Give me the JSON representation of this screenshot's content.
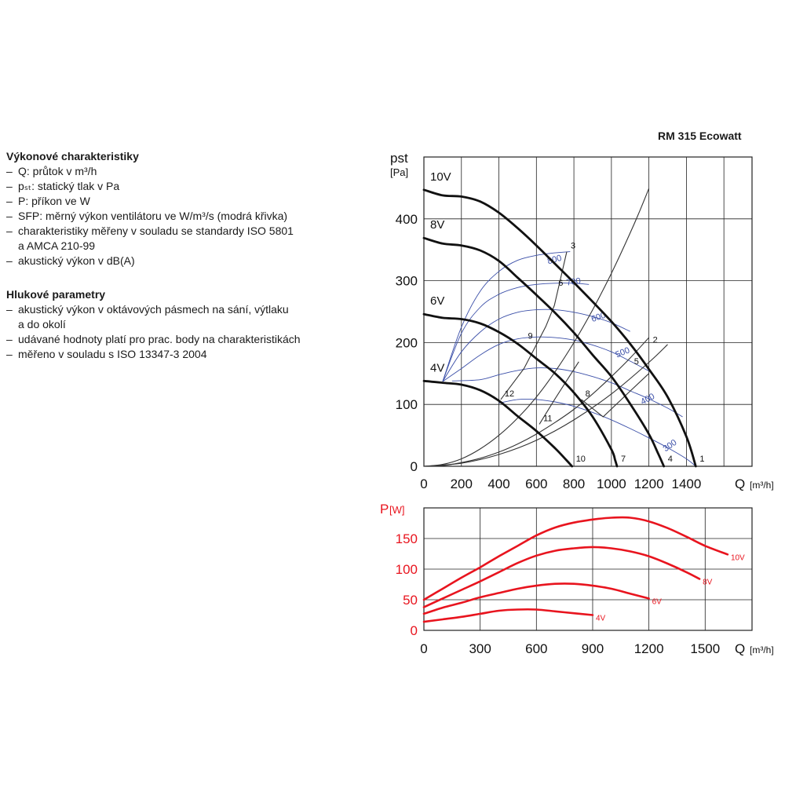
{
  "product_title": "RM 315 Ecowatt",
  "performance": {
    "title": "Výkonové charakteristiky",
    "items": [
      "Q: průtok v m³/h",
      "pₛₜ: statický tlak v Pa",
      "P: příkon ve W",
      "SFP: měrný výkon ventilátoru ve W/m³/s (modrá křivka)",
      "charakteristiky měřeny v souladu se standardy ISO 5801\na AMCA 210-99",
      "akustický výkon v dB(A)"
    ]
  },
  "noise": {
    "title": "Hlukové parametry",
    "items": [
      "akustický výkon v oktávových pásmech na sání, výtlaku\na do okolí",
      "udávané hodnoty platí pro prac. body na charakteristikách",
      "měřeno v souladu s ISO 13347-3 2004"
    ]
  },
  "colors": {
    "fan_curve": "#111111",
    "sfp_curve": "#3b4fa8",
    "power_curve": "#e8141e",
    "grid": "#222222"
  },
  "chart_data": [
    {
      "type": "line",
      "ylabel_main": "pst",
      "ylabel_unit": "[Pa]",
      "xlabel": "Q",
      "xlabel_unit": "[m³/h]",
      "xlim": [
        0,
        1750
      ],
      "ylim": [
        0,
        500
      ],
      "xticks": [
        0,
        200,
        400,
        600,
        800,
        1000,
        1200,
        1400
      ],
      "yticks": [
        0,
        100,
        200,
        300,
        400
      ],
      "grid": true,
      "series": [
        {
          "name": "10V",
          "points": [
            [
              0,
              447
            ],
            [
              100,
              438
            ],
            [
              200,
              436
            ],
            [
              300,
              428
            ],
            [
              400,
              410
            ],
            [
              500,
              385
            ],
            [
              600,
              357
            ],
            [
              700,
              327
            ],
            [
              800,
              297
            ],
            [
              900,
              266
            ],
            [
              1000,
              234
            ],
            [
              1100,
              198
            ],
            [
              1200,
              157
            ],
            [
              1300,
              112
            ],
            [
              1400,
              48
            ],
            [
              1450,
              0
            ]
          ]
        },
        {
          "name": "8V",
          "points": [
            [
              0,
              369
            ],
            [
              100,
              360
            ],
            [
              200,
              357
            ],
            [
              300,
              349
            ],
            [
              400,
              332
            ],
            [
              500,
              305
            ],
            [
              600,
              277
            ],
            [
              700,
              248
            ],
            [
              800,
              216
            ],
            [
              900,
              180
            ],
            [
              1000,
              145
            ],
            [
              1100,
              101
            ],
            [
              1200,
              52
            ],
            [
              1250,
              20
            ],
            [
              1280,
              0
            ]
          ]
        },
        {
          "name": "6V",
          "points": [
            [
              0,
              246
            ],
            [
              100,
              240
            ],
            [
              200,
              238
            ],
            [
              300,
              231
            ],
            [
              400,
              217
            ],
            [
              500,
              198
            ],
            [
              600,
              174
            ],
            [
              700,
              150
            ],
            [
              800,
              119
            ],
            [
              900,
              80
            ],
            [
              1000,
              27
            ],
            [
              1020,
              10
            ],
            [
              1030,
              0
            ]
          ]
        },
        {
          "name": "4V",
          "points": [
            [
              0,
              138
            ],
            [
              100,
              135
            ],
            [
              200,
              132
            ],
            [
              300,
              123
            ],
            [
              400,
              106
            ],
            [
              500,
              81
            ],
            [
              600,
              57
            ],
            [
              700,
              29
            ],
            [
              760,
              10
            ],
            [
              790,
              0
            ]
          ]
        }
      ],
      "sfp_curves": [
        {
          "label": "800",
          "points": [
            [
              100,
              137
            ],
            [
              200,
              225
            ],
            [
              300,
              283
            ],
            [
              400,
              315
            ],
            [
              500,
              333
            ],
            [
              600,
              341
            ],
            [
              700,
              345
            ],
            [
              780,
              347
            ]
          ]
        },
        {
          "label": "700",
          "points": [
            [
              100,
              137
            ],
            [
              200,
              215
            ],
            [
              300,
              257
            ],
            [
              400,
              278
            ],
            [
              500,
              289
            ],
            [
              600,
              294
            ],
            [
              700,
              296
            ],
            [
              800,
              296
            ],
            [
              880,
              294
            ]
          ]
        },
        {
          "label": "600",
          "points": [
            [
              100,
              137
            ],
            [
              200,
              185
            ],
            [
              300,
              217
            ],
            [
              400,
              238
            ],
            [
              500,
              249
            ],
            [
              600,
              253
            ],
            [
              700,
              253
            ],
            [
              800,
              249
            ],
            [
              900,
              242
            ],
            [
              1000,
              232
            ],
            [
              1100,
              218
            ]
          ]
        },
        {
          "label": "500",
          "points": [
            [
              100,
              137
            ],
            [
              200,
              158
            ],
            [
              300,
              180
            ],
            [
              400,
              197
            ],
            [
              500,
              206
            ],
            [
              600,
              209
            ],
            [
              700,
              208
            ],
            [
              800,
              204
            ],
            [
              900,
              196
            ],
            [
              1000,
              185
            ],
            [
              1100,
              170
            ],
            [
              1200,
              154
            ]
          ]
        },
        {
          "label": "400",
          "points": [
            [
              150,
              138
            ],
            [
              300,
              140
            ],
            [
              400,
              148
            ],
            [
              500,
              155
            ],
            [
              600,
              159
            ],
            [
              700,
              158
            ],
            [
              800,
              153
            ],
            [
              900,
              145
            ],
            [
              1000,
              135
            ],
            [
              1100,
              122
            ],
            [
              1200,
              109
            ],
            [
              1300,
              94
            ],
            [
              1380,
              80
            ]
          ]
        },
        {
          "label": "300",
          "points": [
            [
              400,
              102
            ],
            [
              500,
              108
            ],
            [
              600,
              108
            ],
            [
              700,
              104
            ],
            [
              800,
              97
            ],
            [
              900,
              87
            ],
            [
              1000,
              75
            ],
            [
              1100,
              61
            ],
            [
              1200,
              46
            ],
            [
              1300,
              30
            ],
            [
              1400,
              12
            ],
            [
              1450,
              0
            ]
          ]
        }
      ],
      "system_curves": [
        {
          "points": [
            [
              0,
              0
            ],
            [
              100,
              3
            ],
            [
              200,
              12
            ],
            [
              300,
              28
            ],
            [
              400,
              50
            ],
            [
              500,
              78
            ],
            [
              600,
              112
            ],
            [
              700,
              153
            ],
            [
              800,
              200
            ],
            [
              900,
              253
            ],
            [
              1000,
              312
            ],
            [
              1100,
              377
            ],
            [
              1150,
              412
            ],
            [
              1200,
              449
            ]
          ]
        },
        {
          "points": [
            [
              0,
              0
            ],
            [
              100,
              1
            ],
            [
              200,
              6
            ],
            [
              300,
              13
            ],
            [
              400,
              23
            ],
            [
              500,
              36
            ],
            [
              600,
              52
            ],
            [
              700,
              71
            ],
            [
              800,
              92
            ],
            [
              900,
              117
            ],
            [
              1000,
              145
            ],
            [
              1100,
              175
            ],
            [
              1200,
              208
            ]
          ]
        },
        {
          "points": [
            [
              0,
              0
            ],
            [
              200,
              5
            ],
            [
              400,
              19
            ],
            [
              600,
              42
            ],
            [
              800,
              75
            ],
            [
              1000,
              117
            ],
            [
              1200,
              168
            ],
            [
              1300,
              197
            ]
          ]
        }
      ],
      "operating_point_lines": [
        [
          [
            410,
            108
          ],
          [
            534,
            158
          ],
          [
            650,
            226
          ],
          [
            696,
            260
          ],
          [
            762,
            347
          ]
        ],
        [
          [
            616,
            68
          ],
          [
            697,
            108
          ],
          [
            826,
            169
          ]
        ],
        [
          [
            1200,
            150
          ],
          [
            1095,
            120
          ],
          [
            956,
            80
          ],
          [
            840,
            108
          ]
        ]
      ],
      "operating_points": [
        {
          "label": "1",
          "x": 1450,
          "y": 0
        },
        {
          "label": "2",
          "x": 1200,
          "y": 195
        },
        {
          "label": "3",
          "x": 762,
          "y": 347
        },
        {
          "label": "4",
          "x": 1280,
          "y": 0
        },
        {
          "label": "5",
          "x": 1100,
          "y": 160
        },
        {
          "label": "6",
          "x": 696,
          "y": 287
        },
        {
          "label": "7",
          "x": 1030,
          "y": 0
        },
        {
          "label": "8",
          "x": 840,
          "y": 108
        },
        {
          "label": "9",
          "x": 534,
          "y": 201
        },
        {
          "label": "10",
          "x": 790,
          "y": 0
        },
        {
          "label": "11",
          "x": 616,
          "y": 68
        },
        {
          "label": "12",
          "x": 410,
          "y": 108
        }
      ]
    },
    {
      "type": "line",
      "ylabel_main": "P",
      "ylabel_unit": "[W]",
      "xlabel": "Q",
      "xlabel_unit": "[m³/h]",
      "xlim": [
        0,
        1750
      ],
      "ylim": [
        0,
        200
      ],
      "xticks": [
        0,
        300,
        600,
        900,
        1200,
        1500
      ],
      "yticks": [
        0,
        50,
        100,
        150
      ],
      "grid": true,
      "series": [
        {
          "name": "10V",
          "points": [
            [
              0,
              50
            ],
            [
              100,
              68
            ],
            [
              200,
              86
            ],
            [
              300,
              103
            ],
            [
              400,
              121
            ],
            [
              500,
              138
            ],
            [
              600,
              155
            ],
            [
              700,
              168
            ],
            [
              800,
              176
            ],
            [
              900,
              181
            ],
            [
              1000,
              184
            ],
            [
              1100,
              184
            ],
            [
              1200,
              178
            ],
            [
              1300,
              167
            ],
            [
              1400,
              153
            ],
            [
              1500,
              138
            ],
            [
              1620,
              124
            ]
          ]
        },
        {
          "name": "8V",
          "points": [
            [
              0,
              38
            ],
            [
              100,
              52
            ],
            [
              200,
              66
            ],
            [
              300,
              80
            ],
            [
              400,
              95
            ],
            [
              500,
              110
            ],
            [
              600,
              122
            ],
            [
              700,
              130
            ],
            [
              800,
              134
            ],
            [
              900,
              136
            ],
            [
              1000,
              134
            ],
            [
              1100,
              129
            ],
            [
              1200,
              121
            ],
            [
              1300,
              109
            ],
            [
              1400,
              95
            ],
            [
              1470,
              84
            ]
          ]
        },
        {
          "name": "6V",
          "points": [
            [
              0,
              27
            ],
            [
              100,
              37
            ],
            [
              200,
              45
            ],
            [
              300,
              54
            ],
            [
              400,
              61
            ],
            [
              500,
              68
            ],
            [
              600,
              73
            ],
            [
              700,
              76
            ],
            [
              800,
              76
            ],
            [
              900,
              73
            ],
            [
              1000,
              68
            ],
            [
              1100,
              60
            ],
            [
              1200,
              52
            ]
          ]
        },
        {
          "name": "4V",
          "points": [
            [
              0,
              14
            ],
            [
              100,
              18
            ],
            [
              200,
              22
            ],
            [
              300,
              27
            ],
            [
              400,
              32
            ],
            [
              500,
              34
            ],
            [
              600,
              34
            ],
            [
              700,
              31
            ],
            [
              800,
              28
            ],
            [
              900,
              25
            ]
          ]
        }
      ]
    }
  ]
}
